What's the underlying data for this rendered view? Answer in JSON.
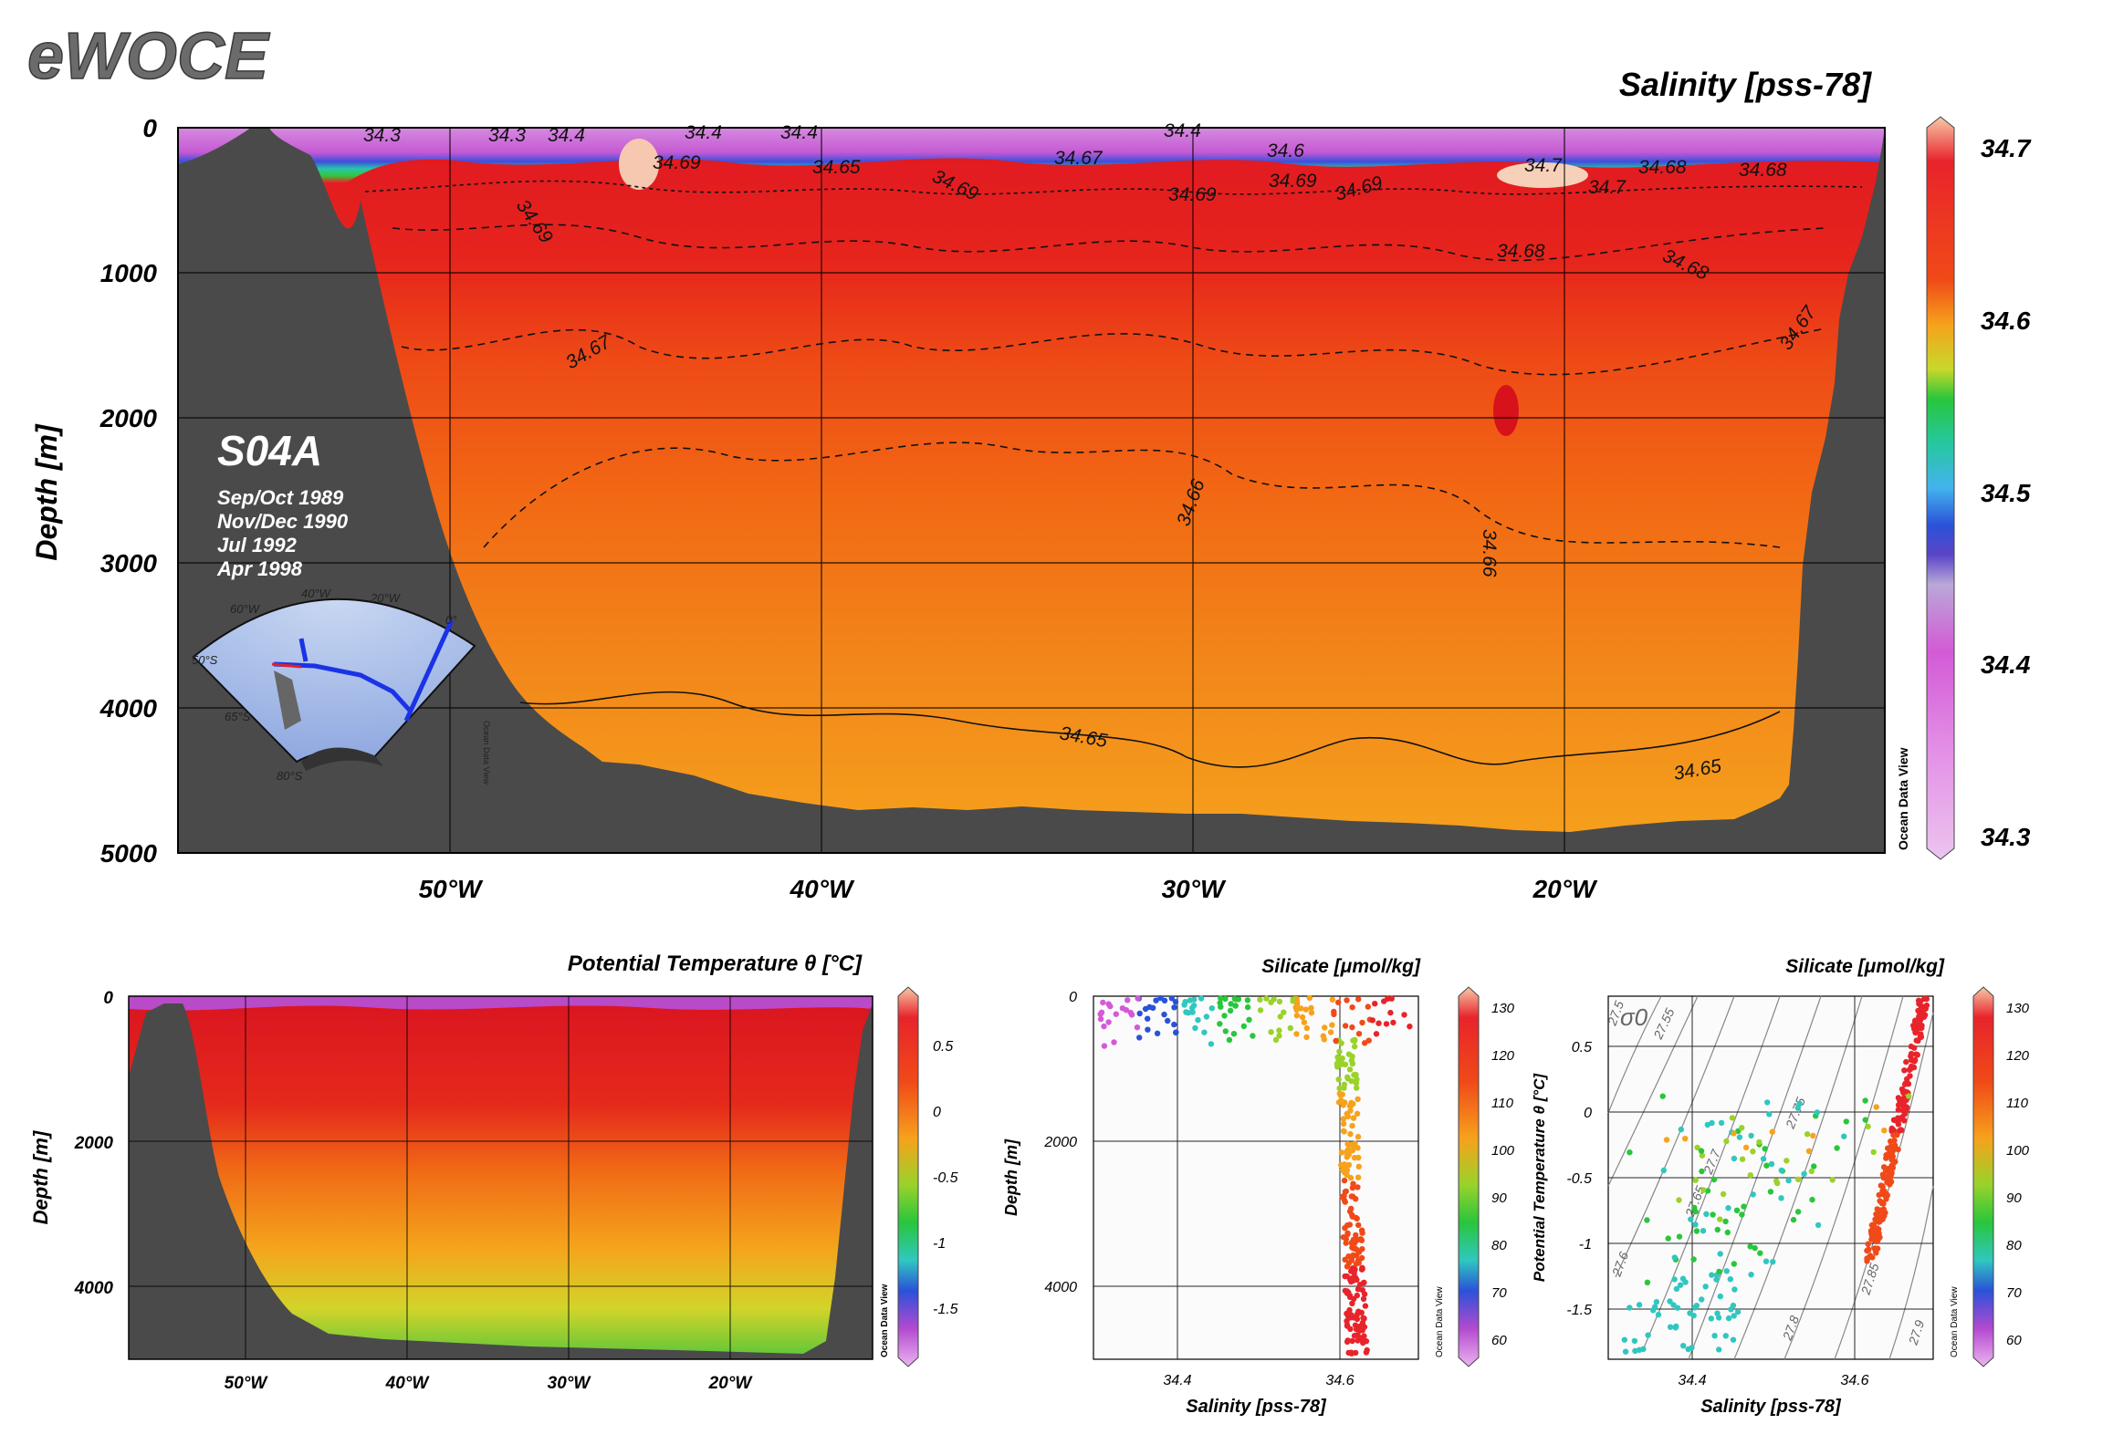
{
  "logo_text": "eWOCE",
  "main_section": {
    "title": "Salinity [pss-78]",
    "section_name": "S04A",
    "cruise_dates": [
      "Sep/Oct 1989",
      "Nov/Dec 1990",
      "Jul 1992",
      "Apr 1998"
    ],
    "ylabel": "Depth [m]",
    "y_ticks": [
      "0",
      "1000",
      "2000",
      "3000",
      "4000",
      "5000"
    ],
    "x_ticks": [
      "50°W",
      "40°W",
      "30°W",
      "20°W"
    ],
    "colorbar_ticks": [
      "34.7",
      "34.6",
      "34.5",
      "34.4",
      "34.3"
    ],
    "odv_credit": "Ocean Data View",
    "contour_labels": [
      "34.3",
      "34.3",
      "34.4",
      "34.4",
      "34.4",
      "34.4",
      "34.6",
      "34.65",
      "34.69",
      "34.69",
      "34.69",
      "34.67",
      "34.69",
      "34.69",
      "34.69",
      "34.68",
      "34.7",
      "34.7",
      "34.68",
      "34.68",
      "34.68",
      "34.67",
      "34.67",
      "34.66",
      "34.66",
      "34.65",
      "34.65"
    ],
    "inset_map_labels": [
      "60°W",
      "40°W",
      "20°W",
      "50°S",
      "65°S",
      "80°S",
      "0°"
    ],
    "inset_credit": "Ocean Data View",
    "colors": {
      "land": "#4a4a4a",
      "track": "#1a33e6"
    }
  },
  "chart_data": [
    {
      "type": "heatmap",
      "title": "Salinity [pss-78]",
      "ylabel": "Depth [m]",
      "xlabel": "",
      "x_ticks": [
        "50°W",
        "40°W",
        "30°W",
        "20°W"
      ],
      "ylim": [
        5000,
        0
      ],
      "colorbar": {
        "min": 34.3,
        "max": 34.7,
        "ticks": [
          34.7,
          34.6,
          34.5,
          34.4,
          34.3
        ]
      },
      "contours": [
        34.65,
        34.66,
        34.67,
        34.68,
        34.69,
        34.7
      ]
    },
    {
      "type": "heatmap",
      "title": "Potential Temperature θ [°C]",
      "ylabel": "Depth [m]",
      "xlabel": "",
      "x_ticks": [
        "50°W",
        "40°W",
        "30°W",
        "20°W"
      ],
      "y_ticks": [
        "0",
        "2000",
        "4000"
      ],
      "colorbar_ticks": [
        "0.5",
        "0",
        "-0.5",
        "-1",
        "-1.5"
      ]
    },
    {
      "type": "scatter",
      "title": "Silicate [μmol/kg]",
      "xlabel": "Salinity [pss-78]",
      "ylabel": "Depth [m]",
      "x_ticks": [
        "34.4",
        "34.6"
      ],
      "y_ticks": [
        "0",
        "2000",
        "4000"
      ],
      "colorbar_ticks": [
        "130",
        "120",
        "110",
        "100",
        "90",
        "80",
        "70",
        "60"
      ],
      "xlim": [
        34.2,
        34.74
      ],
      "ylim": [
        5000,
        0
      ]
    },
    {
      "type": "scatter",
      "title": "Silicate [μmol/kg]",
      "xlabel": "Salinity [pss-78]",
      "ylabel": "Potential Temperature θ [°C]",
      "x_ticks": [
        "34.4",
        "34.6"
      ],
      "y_ticks": [
        "0.5",
        "0",
        "-0.5",
        "-1",
        "-1.5"
      ],
      "colorbar_ticks": [
        "130",
        "120",
        "110",
        "100",
        "90",
        "80",
        "70",
        "60"
      ],
      "isopycnal_labels": [
        "27.5",
        "27.55",
        "27.6",
        "27.65",
        "27.7",
        "27.75",
        "27.8",
        "27.85",
        "27.9"
      ],
      "sigma_label": "σ0",
      "xlim": [
        34.2,
        34.74
      ],
      "ylim": [
        -1.9,
        0.95
      ]
    }
  ],
  "bottom_panels": {
    "temp_title": "Potential Temperature θ [°C]",
    "temp_ylabel": "Depth [m]",
    "temp_y_ticks": [
      "0",
      "2000",
      "4000"
    ],
    "temp_x_ticks": [
      "50°W",
      "40°W",
      "30°W",
      "20°W"
    ],
    "temp_cb_ticks": [
      "0.5",
      "0",
      "-0.5",
      "-1",
      "-1.5"
    ],
    "sil_title": "Silicate [μmol/kg]",
    "sil_xlabel": "Salinity [pss-78]",
    "sil_ylabel": "Depth [m]",
    "sil_y_ticks": [
      "0",
      "2000",
      "4000"
    ],
    "sil_x_ticks": [
      "34.4",
      "34.6"
    ],
    "sil_cb_ticks": [
      "130",
      "120",
      "110",
      "100",
      "90",
      "80",
      "70",
      "60"
    ],
    "ts_title": "Silicate [μmol/kg]",
    "ts_xlabel": "Salinity [pss-78]",
    "ts_ylabel": "Potential Temperature θ [°C]",
    "ts_y_ticks": [
      "0.5",
      "0",
      "-0.5",
      "-1",
      "-1.5"
    ],
    "ts_x_ticks": [
      "34.4",
      "34.6"
    ],
    "ts_cb_ticks": [
      "130",
      "120",
      "110",
      "100",
      "90",
      "80",
      "70",
      "60"
    ],
    "ts_sigma": "σ0",
    "ts_isopycnals": [
      "27.5",
      "27.55",
      "27.6",
      "27.65",
      "27.7",
      "27.75",
      "27.8",
      "27.85",
      "27.9"
    ],
    "odv_credit": "Ocean Data View"
  }
}
